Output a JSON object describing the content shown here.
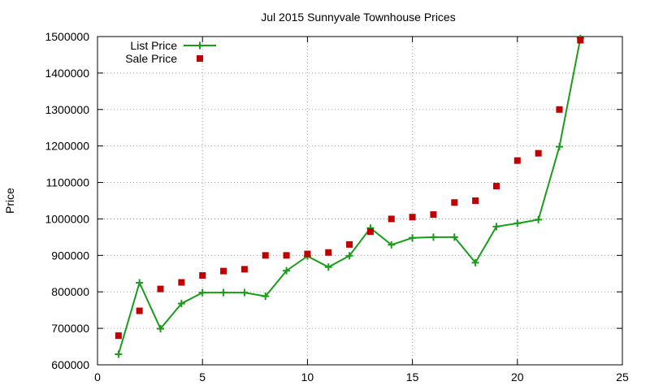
{
  "chart_data": {
    "type": "line",
    "title": "Jul 2015 Sunnyvale Townhouse Prices",
    "xlabel": "",
    "ylabel": "Price",
    "xlim": [
      0,
      25
    ],
    "ylim": [
      600000,
      1500000
    ],
    "x_ticks": [
      "0",
      "5",
      "10",
      "15",
      "20",
      "25"
    ],
    "y_ticks": [
      "600000",
      "700000",
      "800000",
      "900000",
      "1000000",
      "1100000",
      "1200000",
      "1300000",
      "1400000",
      "1500000"
    ],
    "grid": true,
    "legend_position": "top-left",
    "series": [
      {
        "name": "List Price",
        "style": "line-with-plus-markers",
        "color": "#1a9c1a",
        "x": [
          1,
          2,
          3,
          4,
          5,
          6,
          7,
          8,
          9,
          10,
          11,
          12,
          13,
          14,
          15,
          16,
          17,
          18,
          19,
          20,
          21,
          22,
          23
        ],
        "values": [
          629000,
          825000,
          699000,
          768000,
          798000,
          798000,
          798000,
          788000,
          858000,
          898000,
          868000,
          899000,
          975000,
          929000,
          948000,
          950000,
          950000,
          880000,
          979000,
          988000,
          998000,
          1198000,
          1495000
        ]
      },
      {
        "name": "Sale Price",
        "style": "square-markers",
        "color": "#c00000",
        "x": [
          1,
          2,
          3,
          4,
          5,
          6,
          7,
          8,
          9,
          10,
          11,
          12,
          13,
          14,
          15,
          16,
          17,
          18,
          19,
          20,
          21,
          22,
          23
        ],
        "values": [
          680000,
          748000,
          808000,
          826000,
          845000,
          857000,
          862000,
          900000,
          900000,
          904000,
          908000,
          930000,
          965000,
          1000000,
          1005000,
          1012000,
          1045000,
          1050000,
          1090000,
          1160000,
          1180000,
          1300000,
          1490000
        ]
      }
    ]
  }
}
